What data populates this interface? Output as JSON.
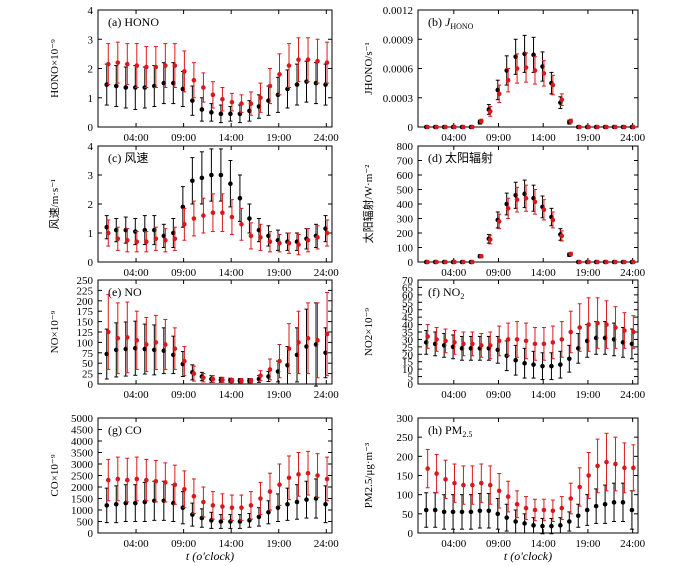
{
  "hours": [
    1,
    2,
    3,
    4,
    5,
    6,
    7,
    8,
    9,
    10,
    11,
    12,
    13,
    14,
    15,
    16,
    17,
    18,
    19,
    20,
    21,
    22,
    23,
    24
  ],
  "xtick_labels": [
    "04:00",
    "09:00",
    "14:00",
    "19:00",
    "24:00"
  ],
  "xlabel": "t (o'clock)",
  "colors": {
    "black_series": "#000000",
    "red_series": "#d7191c"
  },
  "chart_data": [
    {
      "type": "scatter",
      "title": "(a) HONO",
      "ylabel": "HONO×10⁻⁹",
      "ylim": [
        0,
        4
      ],
      "yticks": [
        0,
        1,
        2,
        3,
        4
      ],
      "ytick_labels": [
        "0",
        "1",
        "2",
        "3",
        "4"
      ],
      "series": [
        {
          "color": "black",
          "values": [
            1.45,
            1.4,
            1.35,
            1.35,
            1.35,
            1.4,
            1.5,
            1.5,
            1.3,
            0.9,
            0.6,
            0.5,
            0.45,
            0.45,
            0.45,
            0.55,
            0.7,
            0.9,
            1.1,
            1.3,
            1.45,
            1.55,
            1.5,
            1.45
          ],
          "errors": [
            0.7,
            0.7,
            0.7,
            0.75,
            0.7,
            0.7,
            0.7,
            0.7,
            0.6,
            0.5,
            0.4,
            0.3,
            0.3,
            0.25,
            0.3,
            0.35,
            0.4,
            0.5,
            0.6,
            0.65,
            0.7,
            0.7,
            0.7,
            0.7
          ]
        },
        {
          "color": "red",
          "values": [
            2.15,
            2.2,
            2.15,
            2.1,
            2.05,
            2.05,
            2.1,
            2.1,
            1.9,
            1.6,
            1.35,
            1.1,
            0.95,
            0.85,
            0.8,
            0.8,
            1.0,
            1.4,
            1.8,
            2.1,
            2.3,
            2.3,
            2.25,
            2.2
          ],
          "errors": [
            0.7,
            0.7,
            0.7,
            0.75,
            0.7,
            0.7,
            0.75,
            0.75,
            0.7,
            0.6,
            0.5,
            0.45,
            0.4,
            0.3,
            0.3,
            0.4,
            0.5,
            0.6,
            0.7,
            0.75,
            0.75,
            0.75,
            0.75,
            0.7
          ]
        }
      ]
    },
    {
      "type": "scatter",
      "title": "(b) JHONO",
      "ylabel": "JHONO/s⁻¹",
      "ylim": [
        0,
        0.0012
      ],
      "yticks": [
        0,
        0.0003,
        0.0006,
        0.0009,
        0.0012
      ],
      "ytick_labels": [
        "0",
        "0.0003",
        "0.0006",
        "0.0009",
        "0.0012"
      ],
      "series": [
        {
          "color": "black",
          "values": [
            0,
            0,
            0,
            0,
            0,
            0,
            5e-05,
            0.00018,
            0.00038,
            0.00058,
            0.00072,
            0.00075,
            0.00074,
            0.00062,
            0.00045,
            0.00025,
            5e-05,
            0,
            0,
            0,
            0,
            0,
            0,
            0
          ],
          "errors": [
            0,
            0,
            0,
            0,
            0,
            0,
            2e-05,
            5e-05,
            0.0001,
            0.00015,
            0.00018,
            0.00019,
            0.00018,
            0.00015,
            0.00011,
            6e-05,
            2e-05,
            0,
            0,
            0,
            0,
            0,
            0,
            0
          ]
        },
        {
          "color": "red",
          "values": [
            0,
            0,
            0,
            0,
            0,
            0,
            6e-05,
            0.00016,
            0.00034,
            0.00048,
            0.0006,
            0.00061,
            0.00058,
            0.00055,
            0.00043,
            0.00028,
            6e-05,
            0,
            0,
            0,
            0,
            0,
            0,
            0
          ],
          "errors": [
            0,
            0,
            0,
            0,
            0,
            0,
            2e-05,
            5e-05,
            9e-05,
            0.00012,
            0.00015,
            0.00015,
            0.00014,
            0.00013,
            0.0001,
            6e-05,
            2e-05,
            0,
            0,
            0,
            0,
            0,
            0,
            0
          ]
        }
      ]
    },
    {
      "type": "scatter",
      "title": "(c) 风速",
      "ylabel": "风速/m·s⁻¹",
      "ylim": [
        0,
        4
      ],
      "yticks": [
        0,
        1,
        2,
        3,
        4
      ],
      "ytick_labels": [
        "0",
        "1",
        "2",
        "3",
        "4"
      ],
      "series": [
        {
          "color": "black",
          "values": [
            1.2,
            1.1,
            1.1,
            1.05,
            1.1,
            1.1,
            0.9,
            1.0,
            1.9,
            2.8,
            2.9,
            3.0,
            3.0,
            2.7,
            2.2,
            1.5,
            1.1,
            0.9,
            0.75,
            0.7,
            0.7,
            0.8,
            0.9,
            1.15
          ],
          "errors": [
            0.4,
            0.4,
            0.45,
            0.45,
            0.5,
            0.5,
            0.4,
            0.5,
            0.7,
            0.8,
            0.9,
            0.9,
            0.9,
            0.8,
            0.8,
            0.5,
            0.4,
            0.35,
            0.35,
            0.3,
            0.3,
            0.35,
            0.4,
            0.45
          ]
        },
        {
          "color": "red",
          "values": [
            1.0,
            0.8,
            0.75,
            0.7,
            0.7,
            0.8,
            0.75,
            0.8,
            1.3,
            1.5,
            1.6,
            1.7,
            1.7,
            1.55,
            1.3,
            0.9,
            0.85,
            0.7,
            0.65,
            0.65,
            0.6,
            0.75,
            0.85,
            1.0
          ],
          "errors": [
            0.45,
            0.4,
            0.4,
            0.35,
            0.35,
            0.4,
            0.4,
            0.4,
            0.55,
            0.6,
            0.6,
            0.65,
            0.65,
            0.6,
            0.55,
            0.45,
            0.45,
            0.35,
            0.3,
            0.35,
            0.35,
            0.4,
            0.4,
            0.45
          ]
        }
      ]
    },
    {
      "type": "scatter",
      "title": "(d) 太阳辐射",
      "ylabel": "太阳辐射/W·m⁻²",
      "ylim": [
        0,
        800
      ],
      "yticks": [
        0,
        100,
        200,
        300,
        400,
        500,
        600,
        700,
        800
      ],
      "ytick_labels": [
        "0",
        "100",
        "200",
        "300",
        "400",
        "500",
        "600",
        "700",
        "800"
      ],
      "series": [
        {
          "color": "black",
          "values": [
            0,
            0,
            0,
            0,
            0,
            0,
            40,
            160,
            290,
            400,
            460,
            470,
            440,
            380,
            310,
            190,
            50,
            0,
            0,
            0,
            0,
            0,
            0,
            0
          ],
          "errors": [
            0,
            0,
            0,
            0,
            0,
            0,
            10,
            30,
            55,
            75,
            90,
            95,
            90,
            75,
            60,
            40,
            12,
            0,
            0,
            0,
            0,
            0,
            0,
            0
          ]
        },
        {
          "color": "red",
          "values": [
            0,
            0,
            0,
            0,
            0,
            0,
            40,
            155,
            280,
            370,
            430,
            440,
            415,
            360,
            290,
            180,
            55,
            0,
            0,
            0,
            0,
            0,
            0,
            0
          ],
          "errors": [
            0,
            0,
            0,
            0,
            0,
            0,
            10,
            30,
            50,
            70,
            85,
            90,
            85,
            70,
            55,
            35,
            12,
            0,
            0,
            0,
            0,
            0,
            0,
            0
          ]
        }
      ]
    },
    {
      "type": "scatter",
      "title": "(e) NO",
      "ylabel": "NO×10⁻⁹",
      "ylim": [
        0,
        250
      ],
      "yticks": [
        0,
        25,
        50,
        75,
        100,
        125,
        150,
        175,
        200,
        225,
        250
      ],
      "ytick_labels": [
        "0",
        "25",
        "50",
        "75",
        "100",
        "125",
        "150",
        "175",
        "200",
        "225",
        "250"
      ],
      "series": [
        {
          "color": "black",
          "values": [
            72,
            82,
            84,
            86,
            84,
            82,
            80,
            70,
            48,
            28,
            18,
            12,
            10,
            9,
            8,
            8,
            12,
            18,
            30,
            45,
            70,
            90,
            95,
            75
          ],
          "errors": [
            60,
            65,
            65,
            65,
            60,
            60,
            55,
            45,
            30,
            18,
            10,
            8,
            6,
            5,
            5,
            5,
            8,
            12,
            25,
            45,
            65,
            90,
            100,
            60
          ]
        },
        {
          "color": "red",
          "values": [
            125,
            110,
            112,
            105,
            95,
            100,
            95,
            85,
            55,
            25,
            15,
            12,
            10,
            8,
            8,
            8,
            20,
            35,
            55,
            85,
            100,
            110,
            105,
            120
          ],
          "errors": [
            90,
            85,
            85,
            70,
            65,
            65,
            60,
            50,
            35,
            18,
            10,
            8,
            6,
            5,
            5,
            5,
            12,
            25,
            40,
            60,
            75,
            85,
            90,
            100
          ]
        }
      ]
    },
    {
      "type": "scatter",
      "title": "(f) NO2",
      "ylabel": "NO2×10⁻⁹",
      "ylim": [
        0,
        70
      ],
      "yticks": [
        0,
        5,
        10,
        15,
        20,
        25,
        30,
        35,
        40,
        45,
        50,
        55,
        60,
        65,
        70
      ],
      "ytick_labels": [
        "0",
        "5",
        "10",
        "15",
        "20",
        "25",
        "30",
        "35",
        "40",
        "45",
        "50",
        "55",
        "60",
        "65",
        "70"
      ],
      "series": [
        {
          "color": "black",
          "values": [
            28,
            27,
            26,
            25,
            24,
            24,
            24,
            24,
            23,
            19,
            16,
            14,
            13,
            12,
            12,
            13,
            17,
            24,
            29,
            31,
            31,
            30,
            28,
            27
          ],
          "errors": [
            8,
            8,
            8,
            8,
            8,
            8,
            8,
            8,
            9,
            10,
            10,
            10,
            9,
            9,
            9,
            9,
            9,
            10,
            11,
            11,
            11,
            11,
            10,
            10
          ]
        },
        {
          "color": "red",
          "values": [
            32,
            30,
            29,
            28,
            27,
            27,
            26,
            26,
            29,
            30,
            30,
            29,
            27,
            27,
            28,
            30,
            35,
            38,
            40,
            41,
            40,
            38,
            36,
            35
          ],
          "errors": [
            8,
            8,
            8,
            8,
            8,
            8,
            8,
            9,
            10,
            11,
            12,
            12,
            11,
            11,
            11,
            12,
            14,
            16,
            18,
            17,
            16,
            14,
            12,
            11
          ]
        }
      ]
    },
    {
      "type": "scatter",
      "title": "(g) CO",
      "ylabel": "CO×10⁻⁹",
      "ylim": [
        0,
        5000
      ],
      "yticks": [
        0,
        500,
        1000,
        1500,
        2000,
        2500,
        3000,
        3500,
        4000,
        4500,
        5000
      ],
      "ytick_labels": [
        "0",
        "500",
        "1000",
        "1500",
        "2000",
        "2500",
        "3000",
        "3500",
        "4000",
        "4500",
        "5000"
      ],
      "series": [
        {
          "color": "black",
          "values": [
            1200,
            1250,
            1300,
            1300,
            1350,
            1400,
            1400,
            1300,
            1100,
            800,
            650,
            550,
            500,
            500,
            500,
            550,
            700,
            900,
            1100,
            1250,
            1350,
            1450,
            1500,
            1250
          ],
          "errors": [
            750,
            800,
            800,
            800,
            850,
            850,
            850,
            800,
            700,
            500,
            400,
            350,
            300,
            300,
            300,
            300,
            400,
            500,
            600,
            700,
            750,
            800,
            850,
            800
          ]
        },
        {
          "color": "red",
          "values": [
            2300,
            2350,
            2300,
            2350,
            2300,
            2250,
            2200,
            2100,
            1900,
            1600,
            1350,
            1200,
            1150,
            1100,
            1100,
            1200,
            1500,
            1800,
            2100,
            2400,
            2550,
            2600,
            2500,
            2350
          ],
          "errors": [
            900,
            950,
            950,
            950,
            900,
            900,
            850,
            850,
            800,
            750,
            650,
            600,
            550,
            550,
            550,
            600,
            700,
            800,
            900,
            950,
            950,
            950,
            950,
            950
          ]
        }
      ]
    },
    {
      "type": "scatter",
      "title": "(h) PM2.5",
      "ylabel": "PM2.5/μg·m⁻³",
      "ylim": [
        0,
        300
      ],
      "yticks": [
        0,
        50,
        100,
        150,
        200,
        250,
        300
      ],
      "ytick_labels": [
        "0",
        "50",
        "100",
        "150",
        "200",
        "250",
        "300"
      ],
      "series": [
        {
          "color": "black",
          "values": [
            60,
            60,
            55,
            55,
            55,
            55,
            58,
            58,
            50,
            40,
            30,
            25,
            20,
            18,
            18,
            20,
            30,
            45,
            60,
            70,
            75,
            80,
            80,
            60
          ],
          "errors": [
            45,
            45,
            45,
            45,
            45,
            45,
            45,
            45,
            40,
            35,
            30,
            25,
            20,
            20,
            20,
            20,
            25,
            30,
            40,
            45,
            50,
            50,
            50,
            50
          ]
        },
        {
          "color": "red",
          "values": [
            168,
            155,
            140,
            130,
            125,
            125,
            130,
            125,
            110,
            95,
            75,
            65,
            60,
            60,
            58,
            65,
            90,
            120,
            150,
            175,
            185,
            180,
            170,
            170
          ],
          "errors": [
            50,
            50,
            50,
            50,
            50,
            50,
            50,
            50,
            45,
            40,
            35,
            30,
            28,
            28,
            28,
            30,
            40,
            50,
            60,
            70,
            75,
            70,
            65,
            60
          ]
        }
      ]
    }
  ]
}
